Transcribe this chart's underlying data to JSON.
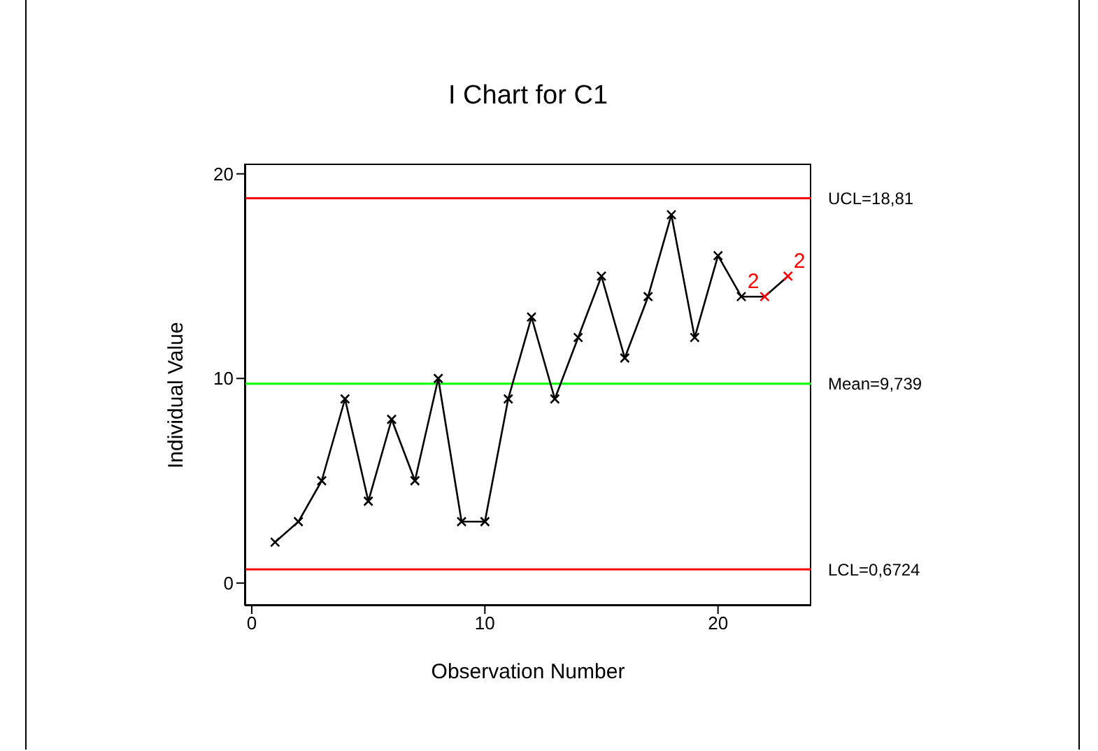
{
  "chart_data": {
    "type": "line",
    "title": "I Chart for C1",
    "xlabel": "Observation Number",
    "ylabel": "Individual Value",
    "x": [
      1,
      2,
      3,
      4,
      5,
      6,
      7,
      8,
      9,
      10,
      11,
      12,
      13,
      14,
      15,
      16,
      17,
      18,
      19,
      20,
      21,
      22,
      23
    ],
    "series": [
      {
        "color": "#000000",
        "values": [
          2,
          3,
          5,
          9,
          4,
          8,
          5,
          10,
          3,
          3,
          9,
          13,
          9,
          12,
          15,
          11,
          14,
          18,
          12,
          16,
          14,
          14,
          15
        ],
        "colors": [
          "#000000",
          "#000000",
          "#000000",
          "#000000",
          "#000000",
          "#000000",
          "#000000",
          "#000000",
          "#000000",
          "#000000",
          "#000000",
          "#000000",
          "#000000",
          "#000000",
          "#000000",
          "#000000",
          "#000000",
          "#000000",
          "#000000",
          "#000000",
          "#000000",
          "#ff0000",
          "#ff0000"
        ]
      }
    ],
    "xlim": [
      -0.3,
      24
    ],
    "ylim": [
      -1.1,
      20.5
    ],
    "xticks": [
      0,
      10,
      20
    ],
    "yticks": [
      0,
      10,
      20
    ],
    "ref_lines": [
      {
        "axis": "y",
        "value": 18.81,
        "label": "UCL=18,81",
        "color": "#ff0000"
      },
      {
        "axis": "y",
        "value": 9.739,
        "label": "Mean=9,739",
        "color": "#00ff00"
      },
      {
        "axis": "y",
        "value": 0.6724,
        "label": "LCL=0,6724",
        "color": "#ff0000"
      }
    ],
    "annotations": [
      {
        "text": "2",
        "x": 22,
        "y": 14
      },
      {
        "text": "2",
        "x": 23,
        "y": 15
      }
    ],
    "marker": "cross",
    "line_style": "solid",
    "grid": false,
    "legend": false
  }
}
